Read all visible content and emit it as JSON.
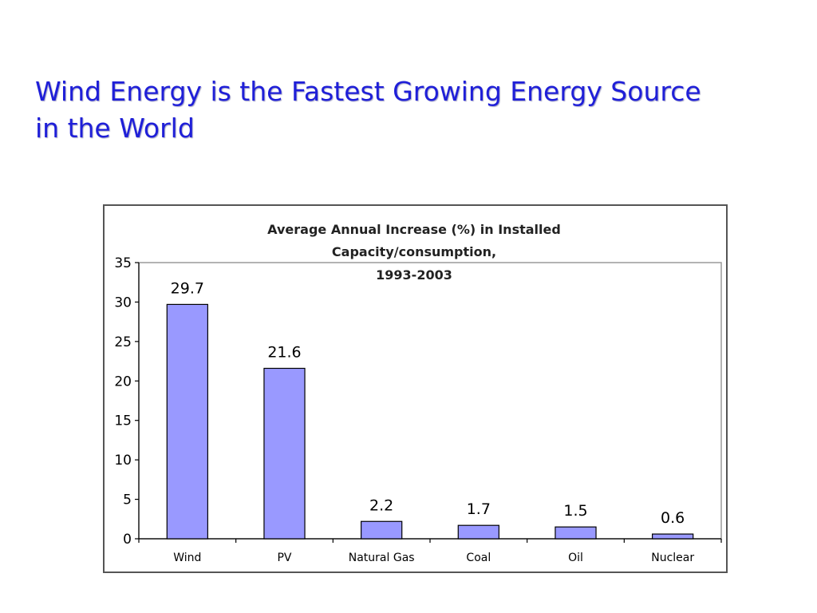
{
  "slide": {
    "title_lines": [
      "Wind Energy is the Fastest Growing Energy Source",
      "in the World"
    ]
  },
  "chart_data": {
    "type": "bar",
    "title_lines": [
      "Average Annual Increase (%) in Installed",
      "Capacity/consumption,",
      "1993-2003"
    ],
    "categories": [
      "Wind",
      "PV",
      "Natural Gas",
      "Coal",
      "Oil",
      "Nuclear"
    ],
    "values": [
      29.7,
      21.6,
      2.2,
      1.7,
      1.5,
      0.6
    ],
    "data_labels": [
      "29.7",
      "21.6",
      "2.2",
      "1.7",
      "1.5",
      "0.6"
    ],
    "y_ticks": [
      "0",
      "5",
      "10",
      "15",
      "20",
      "25",
      "30",
      "35"
    ],
    "ylim": [
      0,
      35
    ],
    "xlabel": "",
    "ylabel": "",
    "grid": false,
    "legend": "none",
    "bar_color": "#9999ff",
    "bar_stroke": "#000000"
  }
}
